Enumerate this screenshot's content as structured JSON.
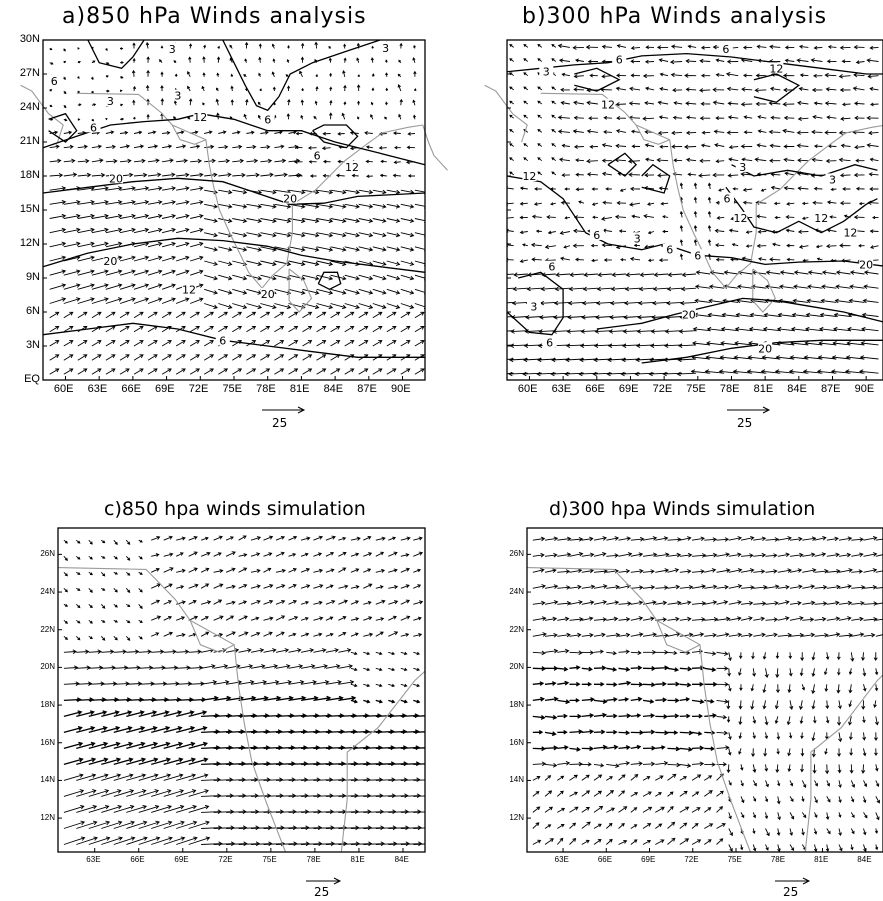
{
  "figure": {
    "panels": [
      {
        "id": "a",
        "title": "a)850 hPa Winds analysis",
        "lat_labels": [
          "30N",
          "27N",
          "24N",
          "21N",
          "18N",
          "15N",
          "12N",
          "9N",
          "6N",
          "3N",
          "EQ"
        ],
        "lon_labels": [
          "60E",
          "63E",
          "66E",
          "69E",
          "72E",
          "75E",
          "78E",
          "81E",
          "84E",
          "87E",
          "90E"
        ],
        "contour_labels": [
          "3",
          "3",
          "6",
          "6",
          "3",
          "6",
          "3",
          "12",
          "6",
          "12",
          "20",
          "20",
          "20",
          "12",
          "20",
          "6"
        ],
        "ref_vector_label": "25"
      },
      {
        "id": "b",
        "title": "b)300 hPa Winds  analysis",
        "lat_labels": [],
        "lon_labels": [
          "60E",
          "63E",
          "66E",
          "69E",
          "72E",
          "75E",
          "78E",
          "81E",
          "84E",
          "87E",
          "90E"
        ],
        "contour_labels": [
          "3",
          "6",
          "6",
          "12",
          "12",
          "12",
          "6",
          "6",
          "6",
          "3",
          "6",
          "3",
          "3",
          "12",
          "12",
          "12",
          "6",
          "3",
          "6",
          "20",
          "20",
          "20"
        ],
        "ref_vector_label": "25"
      },
      {
        "id": "c",
        "title": "c)850 hpa winds simulation",
        "lat_labels": [
          "26N",
          "24N",
          "22N",
          "20N",
          "18N",
          "16N",
          "14N",
          "12N"
        ],
        "lon_labels": [
          "63E",
          "66E",
          "69E",
          "72E",
          "75E",
          "78E",
          "81E",
          "84E"
        ],
        "ref_vector_label": "25"
      },
      {
        "id": "d",
        "title": "d)300 hpa Winds simulation",
        "lat_labels": [
          "26N",
          "24N",
          "22N",
          "20N",
          "18N",
          "16N",
          "14N",
          "12N"
        ],
        "lon_labels": [
          "63E",
          "66E",
          "69E",
          "72E",
          "75E",
          "78E",
          "81E",
          "84E"
        ],
        "ref_vector_label": "25"
      }
    ]
  }
}
